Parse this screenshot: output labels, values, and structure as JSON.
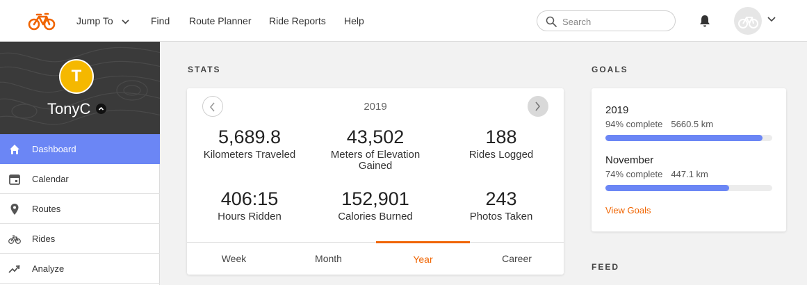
{
  "topnav": {
    "items": [
      {
        "label": "Jump To"
      },
      {
        "label": "Find"
      },
      {
        "label": "Route Planner"
      },
      {
        "label": "Ride Reports"
      },
      {
        "label": "Help"
      }
    ],
    "search": {
      "placeholder": "Search",
      "value": ""
    },
    "icons": {
      "logo": "bicycle-logo-icon",
      "search": "search-icon",
      "bell": "bell-icon",
      "avatar": "bicycle-avatar-icon"
    }
  },
  "sidebar": {
    "profile": {
      "initial": "T",
      "name": "TonyC"
    },
    "items": [
      {
        "label": "Dashboard",
        "icon": "home-icon",
        "active": true
      },
      {
        "label": "Calendar",
        "icon": "calendar-icon"
      },
      {
        "label": "Routes",
        "icon": "map-pin-icon"
      },
      {
        "label": "Rides",
        "icon": "bicycle-icon"
      },
      {
        "label": "Analyze",
        "icon": "trend-icon"
      }
    ]
  },
  "stats": {
    "section_title": "STATS",
    "year": "2019",
    "items": [
      {
        "value": "5,689.8",
        "label": "Kilometers Traveled"
      },
      {
        "value": "43,502",
        "label": "Meters of Elevation Gained"
      },
      {
        "value": "188",
        "label": "Rides Logged"
      },
      {
        "value": "406:15",
        "label": "Hours Ridden"
      },
      {
        "value": "152,901",
        "label": "Calories Burned"
      },
      {
        "value": "243",
        "label": "Photos Taken"
      }
    ],
    "tabs": [
      {
        "label": "Week"
      },
      {
        "label": "Month"
      },
      {
        "label": "Year",
        "active": true
      },
      {
        "label": "Career"
      }
    ]
  },
  "goals": {
    "section_title": "GOALS",
    "items": [
      {
        "name": "2019",
        "complete": "94% complete",
        "distance": "5660.5 km",
        "progress": 0.94
      },
      {
        "name": "November",
        "complete": "74% complete",
        "distance": "447.1 km",
        "progress": 0.74
      }
    ],
    "view_label": "View Goals"
  },
  "feed": {
    "section_title": "FEED"
  },
  "colors": {
    "accent": "#f06400",
    "active": "#6b86f5",
    "avatar": "#f5b800"
  }
}
